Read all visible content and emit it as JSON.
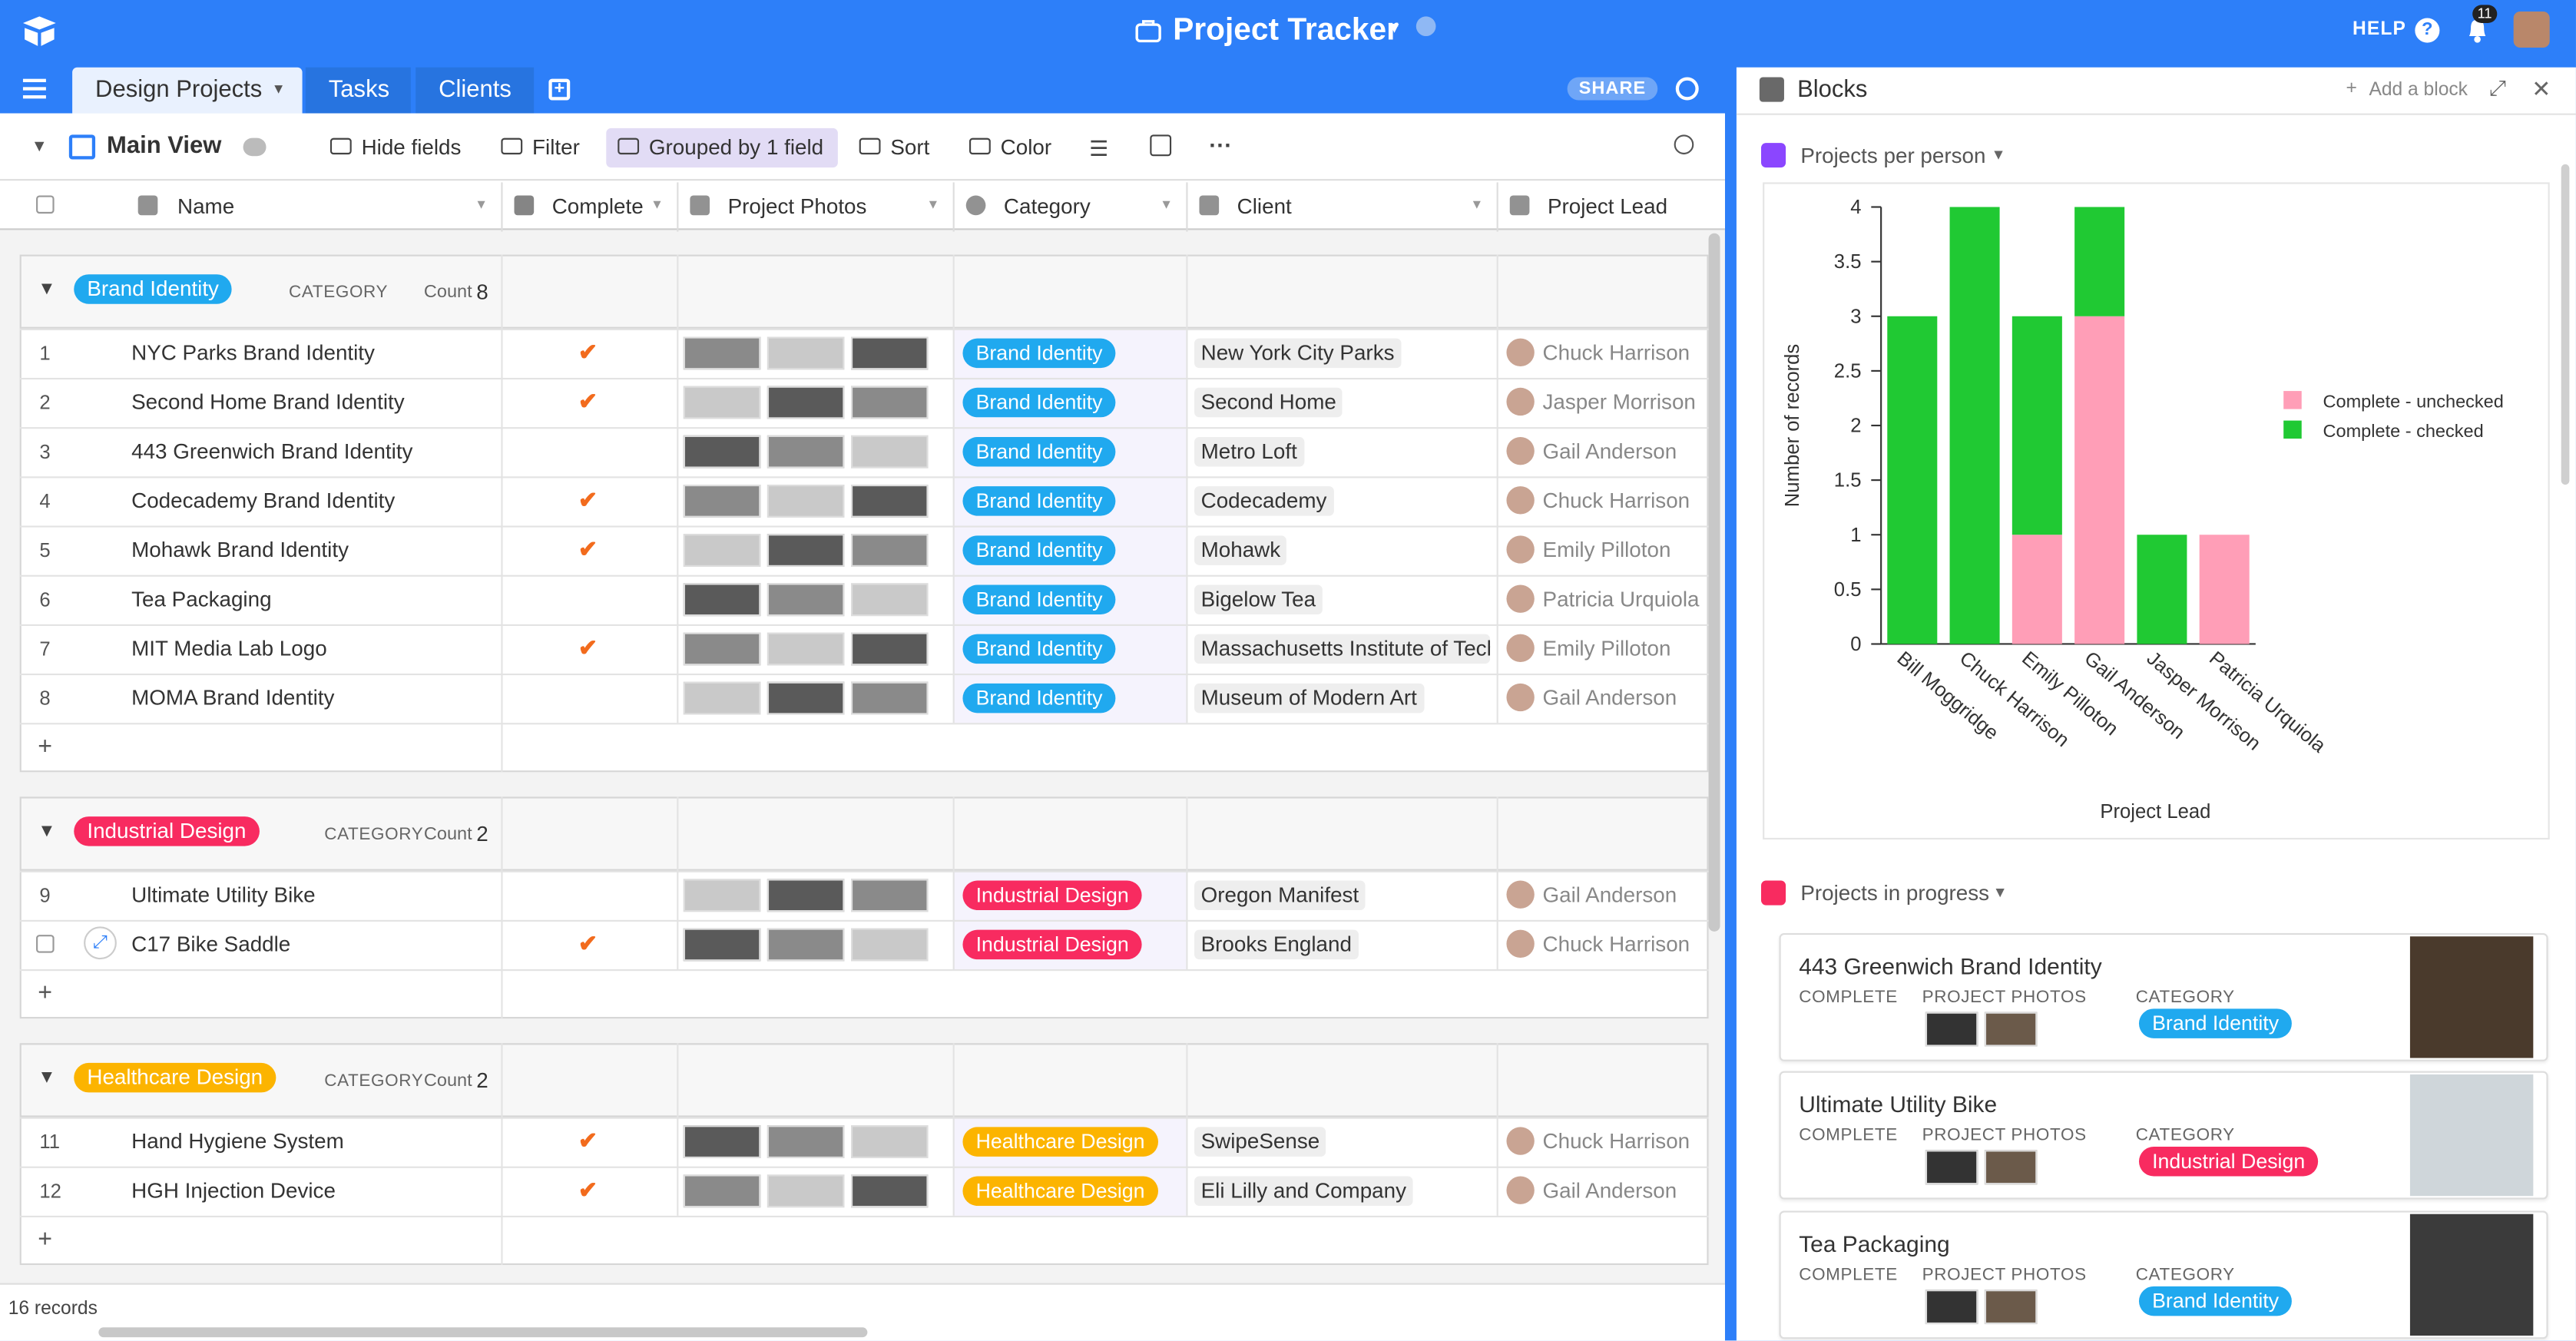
{
  "header": {
    "title": "Project Tracker",
    "help": "HELP",
    "notifications": 11
  },
  "tabs": [
    "Design Projects",
    "Tasks",
    "Clients"
  ],
  "share": "SHARE",
  "toolbar": {
    "view": "Main View",
    "buttons": [
      "Hide fields",
      "Filter",
      "Grouped by 1 field",
      "Sort",
      "Color"
    ]
  },
  "grid": {
    "columns": [
      "Name",
      "Complete",
      "Project Photos",
      "Category",
      "Client",
      "Project Lead"
    ],
    "groups": [
      {
        "label": "Brand Identity",
        "field": "CATEGORY",
        "count_label": "Count",
        "count": 8,
        "color": "#20a9ef",
        "rows": [
          {
            "num": 1,
            "name": "NYC Parks Brand Identity",
            "complete": true,
            "client": "New York City Parks",
            "lead": "Chuck Harrison"
          },
          {
            "num": 2,
            "name": "Second Home Brand Identity",
            "complete": true,
            "client": "Second Home",
            "lead": "Jasper Morrison"
          },
          {
            "num": 3,
            "name": "443 Greenwich Brand Identity",
            "complete": false,
            "client": "Metro Loft",
            "lead": "Gail Anderson"
          },
          {
            "num": 4,
            "name": "Codecademy Brand Identity",
            "complete": true,
            "client": "Codecademy",
            "lead": "Chuck Harrison"
          },
          {
            "num": 5,
            "name": "Mohawk Brand Identity",
            "complete": true,
            "client": "Mohawk",
            "lead": "Emily Pilloton"
          },
          {
            "num": 6,
            "name": "Tea Packaging",
            "complete": false,
            "client": "Bigelow Tea",
            "lead": "Patricia Urquiola"
          },
          {
            "num": 7,
            "name": "MIT Media Lab Logo",
            "complete": true,
            "client": "Massachusetts Institute of Tech",
            "lead": "Emily Pilloton"
          },
          {
            "num": 8,
            "name": "MOMA Brand Identity",
            "complete": false,
            "client": "Museum of Modern Art",
            "lead": "Gail Anderson"
          }
        ]
      },
      {
        "label": "Industrial Design",
        "field": "CATEGORY",
        "count_label": "Count",
        "count": 2,
        "color": "#f82b60",
        "rows": [
          {
            "num": 9,
            "name": "Ultimate Utility Bike",
            "complete": false,
            "client": "Oregon Manifest",
            "lead": "Gail Anderson"
          },
          {
            "num": null,
            "name": "C17 Bike Saddle",
            "complete": true,
            "client": "Brooks England",
            "lead": "Chuck Harrison"
          }
        ]
      },
      {
        "label": "Healthcare Design",
        "field": "CATEGORY",
        "count_label": "Count",
        "count": 2,
        "color": "#fcb400",
        "rows": [
          {
            "num": 11,
            "name": "Hand Hygiene System",
            "complete": true,
            "client": "SwipeSense",
            "lead": "Chuck Harrison"
          },
          {
            "num": 12,
            "name": "HGH Injection Device",
            "complete": true,
            "client": "Eli Lilly and Company",
            "lead": "Gail Anderson"
          }
        ]
      }
    ]
  },
  "footer": "16 records",
  "blocks": {
    "title": "Blocks",
    "add": "Add a block",
    "chart_title": "Projects per person",
    "list_title": "Projects in progress",
    "card_labels": [
      "COMPLETE",
      "PROJECT PHOTOS",
      "CATEGORY"
    ],
    "cards": [
      {
        "title": "443 Greenwich Brand Identity",
        "category": "Brand Identity",
        "color": "#20a9ef"
      },
      {
        "title": "Ultimate Utility Bike",
        "category": "Industrial Design",
        "color": "#f82b60"
      },
      {
        "title": "Tea Packaging",
        "category": "Brand Identity",
        "color": "#20a9ef"
      }
    ]
  },
  "chart_data": {
    "type": "stacked_bar",
    "x_label": "Project Lead",
    "y_label": "Number of records",
    "categories": [
      "Bill Moggridge",
      "Chuck Harrison",
      "Emily Pilloton",
      "Gail Anderson",
      "Jasper Morrison",
      "Patricia Urquiola"
    ],
    "series": [
      {
        "name": "Complete - unchecked",
        "color": "#ff9eb7",
        "values": [
          0,
          0,
          1,
          3,
          0,
          1
        ]
      },
      {
        "name": "Complete - checked",
        "color": "#20c933",
        "values": [
          3,
          4,
          2,
          1,
          1,
          0
        ]
      }
    ],
    "ylim": [
      0,
      4
    ],
    "yticks": [
      0,
      0.5,
      1,
      1.5,
      2,
      2.5,
      3,
      3.5,
      4
    ],
    "grid": false,
    "legend": "right"
  }
}
